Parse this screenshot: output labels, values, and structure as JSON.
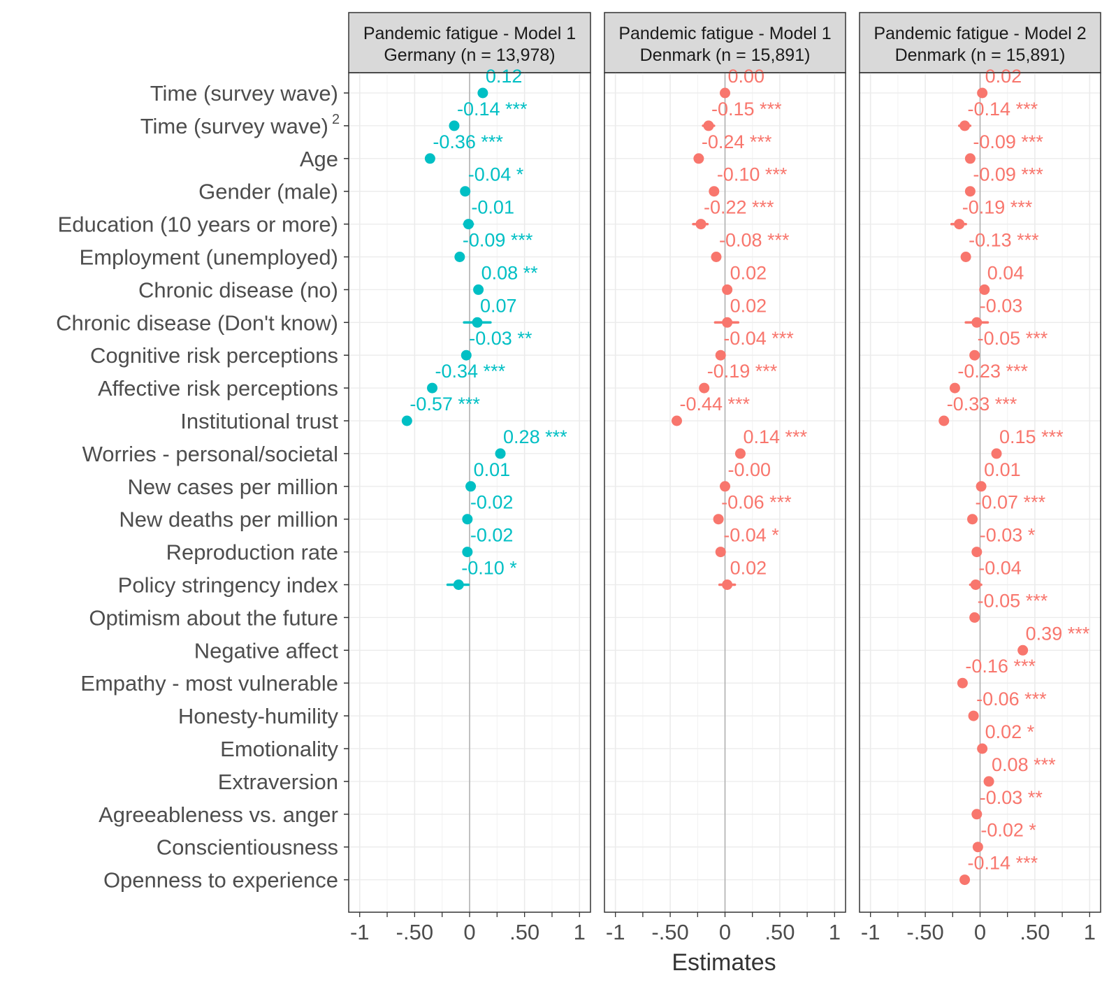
{
  "chart_data": {
    "type": "scatter",
    "plot_style": "coefficient dot-and-whisker plot, faceted",
    "xlabel": "Estimates",
    "x_ticks": [
      "-1",
      "-.50",
      "0",
      ".50",
      "1"
    ],
    "x_tick_values": [
      -1,
      -0.5,
      0,
      0.5,
      1
    ],
    "xlim": [
      -1.1,
      1.1
    ],
    "grid": true,
    "zero_line": true,
    "terms": [
      "Time (survey wave)",
      "Time (survey wave)",
      "Age",
      "Gender (male)",
      "Education (10 years or more)",
      "Employment (unemployed)",
      "Chronic disease (no)",
      "Chronic disease (Don't know)",
      "Cognitive risk perceptions",
      "Affective risk perceptions",
      "Institutional trust",
      "Worries - personal/societal",
      "New cases per million",
      "New deaths per million",
      "Reproduction rate",
      "Policy stringency index",
      "Optimism about the future",
      "Negative affect",
      "Empathy - most vulnerable",
      "Honesty-humility",
      "Emotionality",
      "Extraversion",
      "Agreeableness vs. anger",
      "Conscientiousness",
      "Openness to experience"
    ],
    "term_superscripts": {
      "1": "2"
    },
    "facets": [
      {
        "title_line1": "Pandemic fatigue - Model 1",
        "title_line2": "Germany (n = 13,978)",
        "color": "#00BFC4",
        "estimates": [
          {
            "term_index": 0,
            "value": 0.12,
            "label": "0.12",
            "lo": 0.12,
            "hi": 0.12
          },
          {
            "term_index": 1,
            "value": -0.14,
            "label": "-0.14 ***",
            "lo": -0.17,
            "hi": -0.11
          },
          {
            "term_index": 2,
            "value": -0.36,
            "label": "-0.36 ***",
            "lo": -0.36,
            "hi": -0.36
          },
          {
            "term_index": 3,
            "value": -0.04,
            "label": "-0.04 *",
            "lo": -0.04,
            "hi": -0.04
          },
          {
            "term_index": 4,
            "value": -0.01,
            "label": "-0.01",
            "lo": -0.05,
            "hi": 0.03
          },
          {
            "term_index": 5,
            "value": -0.09,
            "label": "-0.09 ***",
            "lo": -0.09,
            "hi": -0.09
          },
          {
            "term_index": 6,
            "value": 0.08,
            "label": "0.08 **",
            "lo": 0.08,
            "hi": 0.08
          },
          {
            "term_index": 7,
            "value": 0.07,
            "label": "0.07",
            "lo": -0.05,
            "hi": 0.19
          },
          {
            "term_index": 8,
            "value": -0.03,
            "label": "-0.03 **",
            "lo": -0.03,
            "hi": -0.03
          },
          {
            "term_index": 9,
            "value": -0.34,
            "label": "-0.34 ***",
            "lo": -0.34,
            "hi": -0.34
          },
          {
            "term_index": 10,
            "value": -0.57,
            "label": "-0.57 ***",
            "lo": -0.57,
            "hi": -0.57
          },
          {
            "term_index": 11,
            "value": 0.28,
            "label": "0.28 ***",
            "lo": 0.28,
            "hi": 0.28
          },
          {
            "term_index": 12,
            "value": 0.01,
            "label": "0.01",
            "lo": 0.01,
            "hi": 0.01
          },
          {
            "term_index": 13,
            "value": -0.02,
            "label": "-0.02",
            "lo": -0.04,
            "hi": 0.0
          },
          {
            "term_index": 14,
            "value": -0.02,
            "label": "-0.02",
            "lo": -0.02,
            "hi": -0.02
          },
          {
            "term_index": 15,
            "value": -0.1,
            "label": "-0.10 *",
            "lo": -0.2,
            "hi": -0.01
          }
        ]
      },
      {
        "title_line1": "Pandemic fatigue - Model 1",
        "title_line2": "Denmark (n = 15,891)",
        "color": "#F8766D",
        "estimates": [
          {
            "term_index": 0,
            "value": 0.0,
            "label": "0.00",
            "lo": 0.0,
            "hi": 0.0
          },
          {
            "term_index": 1,
            "value": -0.15,
            "label": "-0.15 ***",
            "lo": -0.2,
            "hi": -0.1
          },
          {
            "term_index": 2,
            "value": -0.24,
            "label": "-0.24 ***",
            "lo": -0.24,
            "hi": -0.24
          },
          {
            "term_index": 3,
            "value": -0.1,
            "label": "-0.10 ***",
            "lo": -0.1,
            "hi": -0.1
          },
          {
            "term_index": 4,
            "value": -0.22,
            "label": "-0.22 ***",
            "lo": -0.29,
            "hi": -0.16
          },
          {
            "term_index": 5,
            "value": -0.08,
            "label": "-0.08 ***",
            "lo": -0.08,
            "hi": -0.08
          },
          {
            "term_index": 6,
            "value": 0.02,
            "label": "0.02",
            "lo": 0.02,
            "hi": 0.02
          },
          {
            "term_index": 7,
            "value": 0.02,
            "label": "0.02",
            "lo": -0.09,
            "hi": 0.12
          },
          {
            "term_index": 8,
            "value": -0.04,
            "label": "-0.04 ***",
            "lo": -0.04,
            "hi": -0.04
          },
          {
            "term_index": 9,
            "value": -0.19,
            "label": "-0.19 ***",
            "lo": -0.19,
            "hi": -0.19
          },
          {
            "term_index": 10,
            "value": -0.44,
            "label": "-0.44 ***",
            "lo": -0.44,
            "hi": -0.44
          },
          {
            "term_index": 11,
            "value": 0.14,
            "label": "0.14 ***",
            "lo": 0.14,
            "hi": 0.14
          },
          {
            "term_index": 12,
            "value": -0.0,
            "label": "-0.00",
            "lo": -0.0,
            "hi": -0.0
          },
          {
            "term_index": 13,
            "value": -0.06,
            "label": "-0.06 ***",
            "lo": -0.06,
            "hi": -0.06
          },
          {
            "term_index": 14,
            "value": -0.04,
            "label": "-0.04 *",
            "lo": -0.04,
            "hi": -0.04
          },
          {
            "term_index": 15,
            "value": 0.02,
            "label": "0.02",
            "lo": -0.05,
            "hi": 0.09
          }
        ]
      },
      {
        "title_line1": "Pandemic fatigue - Model 2",
        "title_line2": "Denmark (n = 15,891)",
        "color": "#F8766D",
        "estimates": [
          {
            "term_index": 0,
            "value": 0.02,
            "label": "0.02",
            "lo": 0.02,
            "hi": 0.02
          },
          {
            "term_index": 1,
            "value": -0.14,
            "label": "-0.14 ***",
            "lo": -0.19,
            "hi": -0.09
          },
          {
            "term_index": 2,
            "value": -0.09,
            "label": "-0.09 ***",
            "lo": -0.09,
            "hi": -0.09
          },
          {
            "term_index": 3,
            "value": -0.09,
            "label": "-0.09 ***",
            "lo": -0.09,
            "hi": -0.09
          },
          {
            "term_index": 4,
            "value": -0.19,
            "label": "-0.19 ***",
            "lo": -0.26,
            "hi": -0.13
          },
          {
            "term_index": 5,
            "value": -0.13,
            "label": "-0.13 ***",
            "lo": -0.13,
            "hi": -0.13
          },
          {
            "term_index": 6,
            "value": 0.04,
            "label": "0.04",
            "lo": 0.04,
            "hi": 0.04
          },
          {
            "term_index": 7,
            "value": -0.03,
            "label": "-0.03",
            "lo": -0.13,
            "hi": 0.07
          },
          {
            "term_index": 8,
            "value": -0.05,
            "label": "-0.05 ***",
            "lo": -0.05,
            "hi": -0.05
          },
          {
            "term_index": 9,
            "value": -0.23,
            "label": "-0.23 ***",
            "lo": -0.23,
            "hi": -0.23
          },
          {
            "term_index": 10,
            "value": -0.33,
            "label": "-0.33 ***",
            "lo": -0.33,
            "hi": -0.33
          },
          {
            "term_index": 11,
            "value": 0.15,
            "label": "0.15 ***",
            "lo": 0.15,
            "hi": 0.15
          },
          {
            "term_index": 12,
            "value": 0.01,
            "label": "0.01",
            "lo": 0.01,
            "hi": 0.01
          },
          {
            "term_index": 13,
            "value": -0.07,
            "label": "-0.07 ***",
            "lo": -0.07,
            "hi": -0.07
          },
          {
            "term_index": 14,
            "value": -0.03,
            "label": "-0.03 *",
            "lo": -0.03,
            "hi": -0.03
          },
          {
            "term_index": 15,
            "value": -0.04,
            "label": "-0.04",
            "lo": -0.09,
            "hi": 0.01
          },
          {
            "term_index": 16,
            "value": -0.05,
            "label": "-0.05 ***",
            "lo": -0.05,
            "hi": -0.05
          },
          {
            "term_index": 17,
            "value": 0.39,
            "label": "0.39 ***",
            "lo": 0.39,
            "hi": 0.39
          },
          {
            "term_index": 18,
            "value": -0.16,
            "label": "-0.16 ***",
            "lo": -0.16,
            "hi": -0.16
          },
          {
            "term_index": 19,
            "value": -0.06,
            "label": "-0.06 ***",
            "lo": -0.06,
            "hi": -0.06
          },
          {
            "term_index": 20,
            "value": 0.02,
            "label": "0.02 *",
            "lo": 0.02,
            "hi": 0.02
          },
          {
            "term_index": 21,
            "value": 0.08,
            "label": "0.08 ***",
            "lo": 0.08,
            "hi": 0.08
          },
          {
            "term_index": 22,
            "value": -0.03,
            "label": "-0.03 **",
            "lo": -0.03,
            "hi": -0.03
          },
          {
            "term_index": 23,
            "value": -0.02,
            "label": "-0.02 *",
            "lo": -0.02,
            "hi": -0.02
          },
          {
            "term_index": 24,
            "value": -0.14,
            "label": "-0.14 ***",
            "lo": -0.14,
            "hi": -0.14
          }
        ]
      }
    ]
  }
}
